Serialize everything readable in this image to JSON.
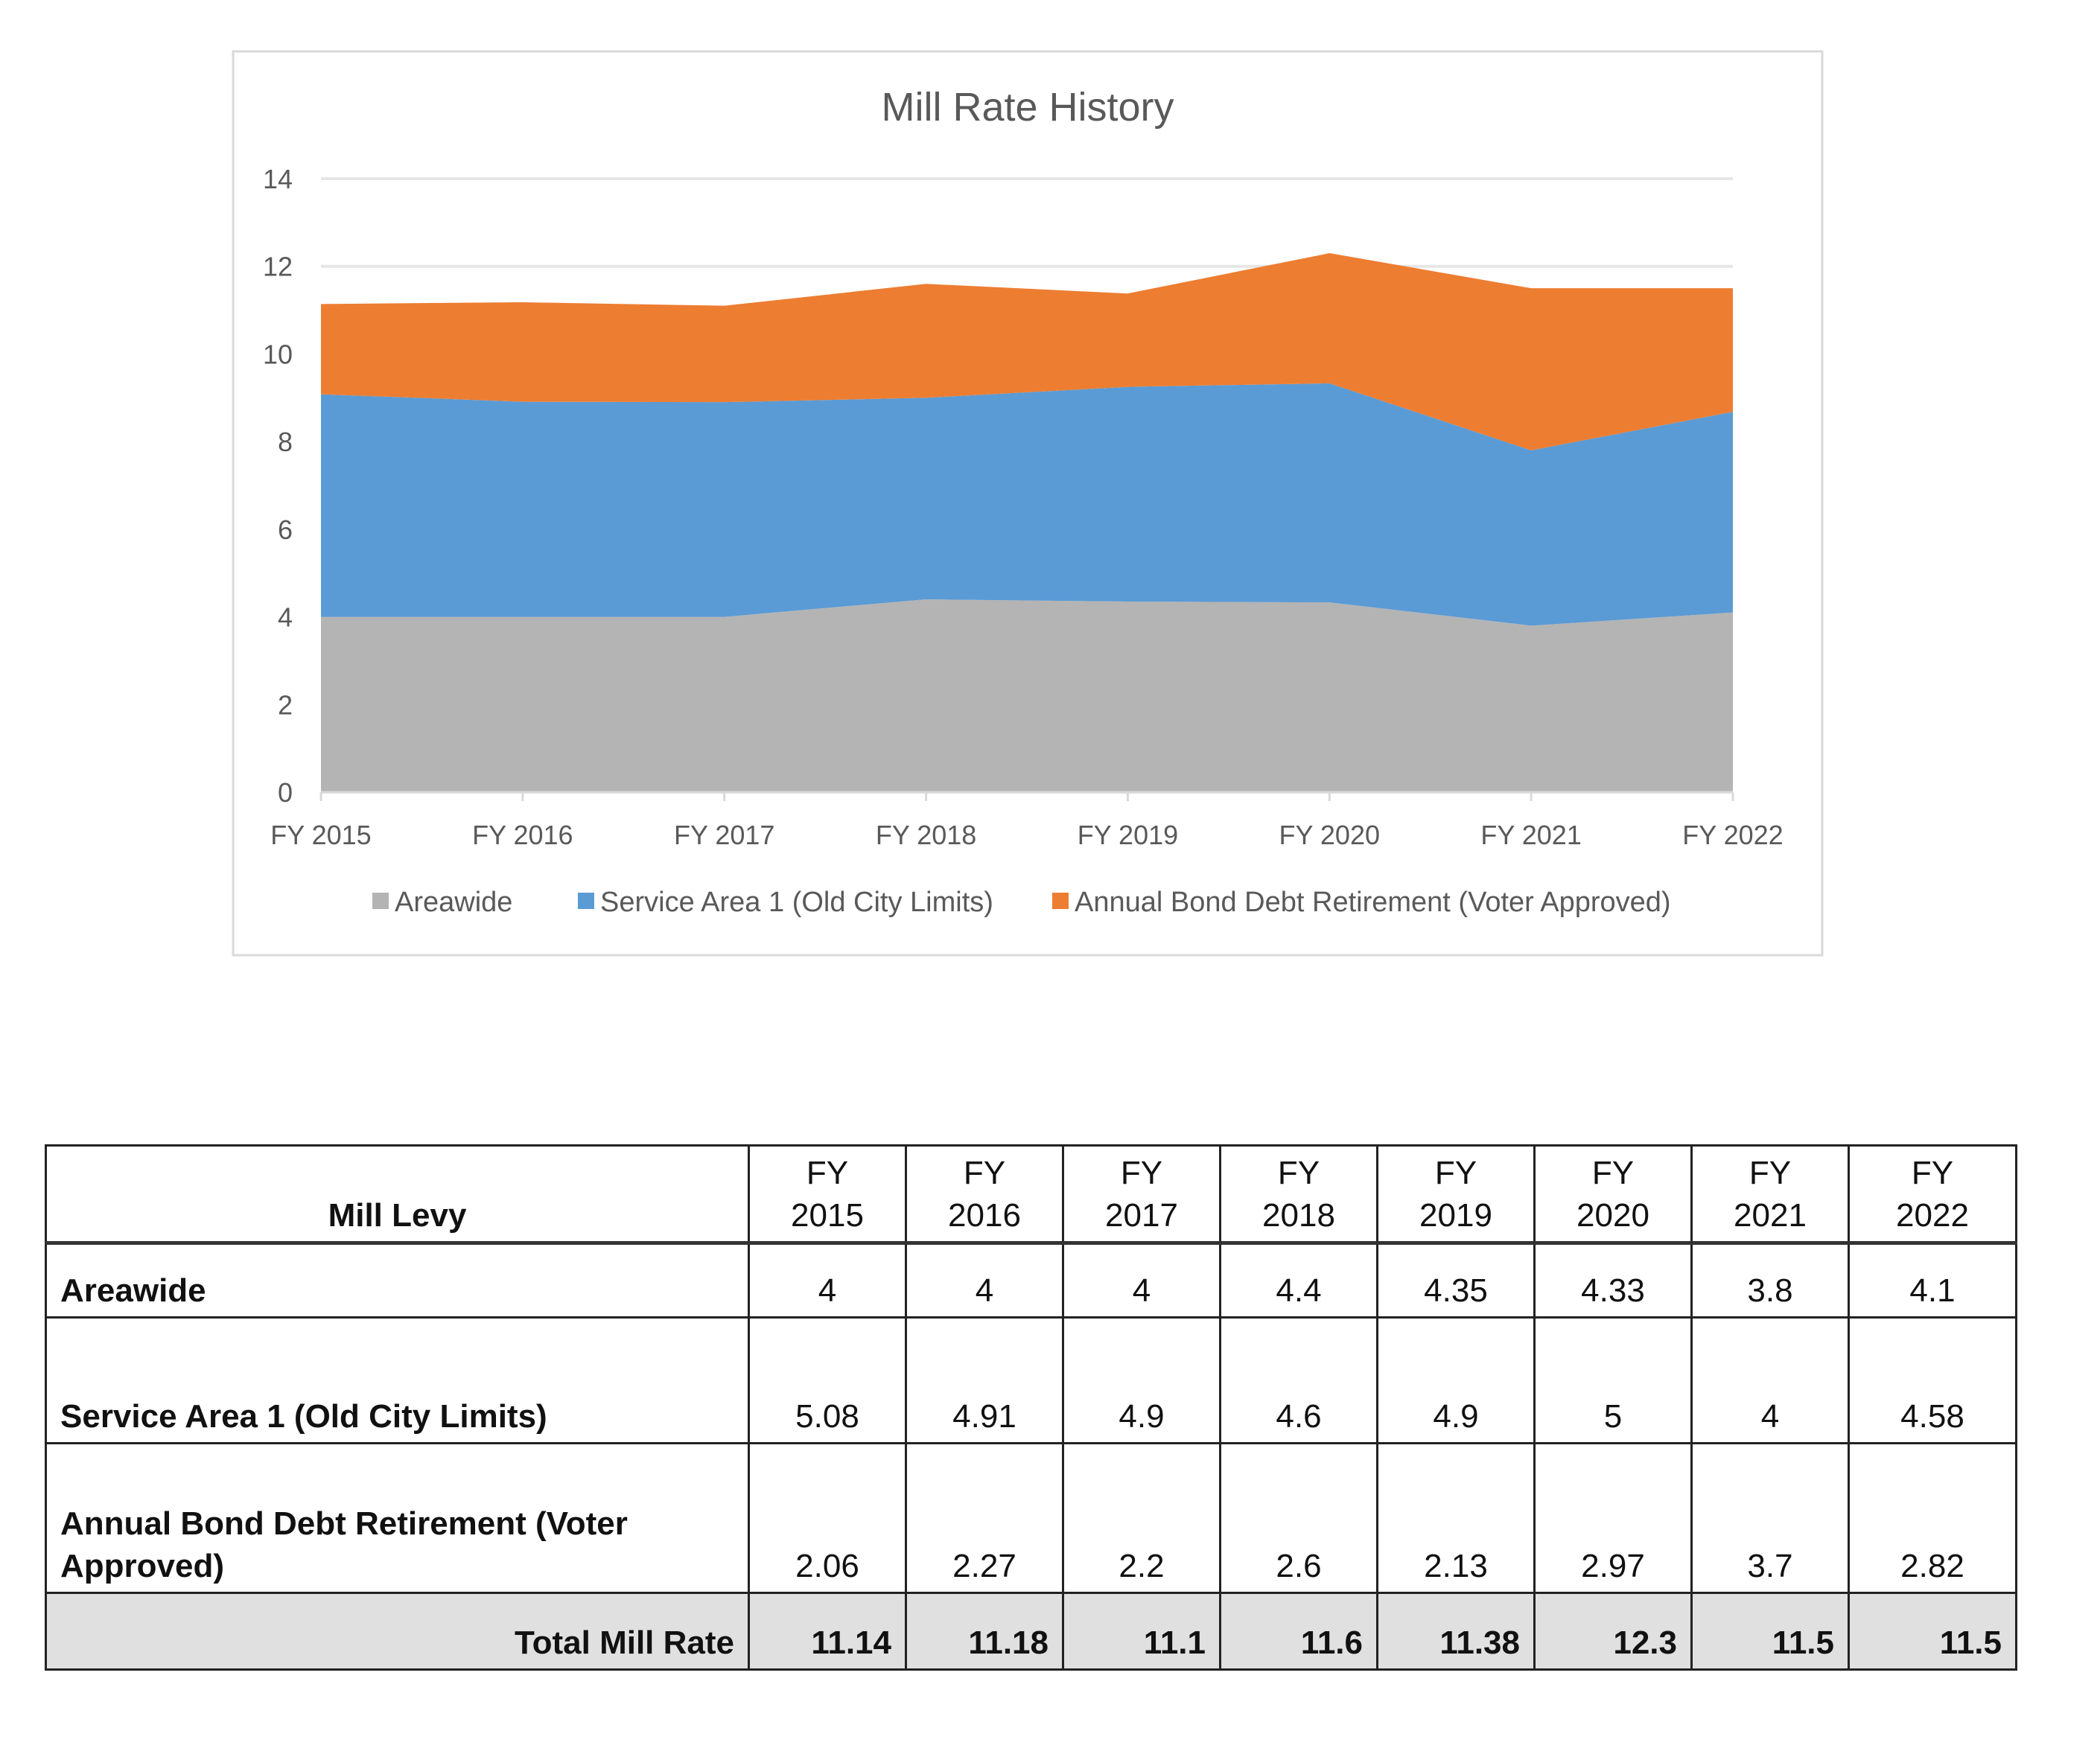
{
  "chart_data": {
    "type": "area",
    "stacked": true,
    "title": "Mill Rate History",
    "categories": [
      "FY 2015",
      "FY 2016",
      "FY 2017",
      "FY 2018",
      "FY 2019",
      "FY 2020",
      "FY 2021",
      "FY 2022"
    ],
    "series": [
      {
        "name": "Areawide",
        "color": "#b4b4b4",
        "values": [
          4,
          4,
          4,
          4.4,
          4.35,
          4.33,
          3.8,
          4.1
        ]
      },
      {
        "name": "Service Area 1 (Old City Limits)",
        "color": "#5b9bd5",
        "values": [
          5.08,
          4.91,
          4.9,
          4.6,
          4.9,
          5,
          4,
          4.58
        ]
      },
      {
        "name": "Annual Bond Debt Retirement (Voter Approved)",
        "color": "#ed7d31",
        "values": [
          2.06,
          2.27,
          2.2,
          2.6,
          2.13,
          2.97,
          3.7,
          2.82
        ]
      }
    ],
    "ylim": [
      0,
      14
    ],
    "yticks": [
      "0",
      "2",
      "4",
      "6",
      "8",
      "10",
      "12",
      "14"
    ],
    "grid": true,
    "legend": "bottom"
  },
  "table": {
    "header_label": "Mill Levy",
    "columns": [
      [
        "FY",
        "2015"
      ],
      [
        "FY",
        "2016"
      ],
      [
        "FY",
        "2017"
      ],
      [
        "FY",
        "2018"
      ],
      [
        "FY",
        "2019"
      ],
      [
        "FY",
        "2020"
      ],
      [
        "FY",
        "2021"
      ],
      [
        "FY",
        "2022"
      ]
    ],
    "rows": [
      {
        "label": "Areawide",
        "values": [
          "4",
          "4",
          "4",
          "4.4",
          "4.35",
          "4.33",
          "3.8",
          "4.1"
        ]
      },
      {
        "label": "Service Area 1 (Old City Limits)",
        "values": [
          "5.08",
          "4.91",
          "4.9",
          "4.6",
          "4.9",
          "5",
          "4",
          "4.58"
        ]
      },
      {
        "label": "Annual Bond Debt Retirement (Voter Approved)",
        "values": [
          "2.06",
          "2.27",
          "2.2",
          "2.6",
          "2.13",
          "2.97",
          "3.7",
          "2.82"
        ]
      }
    ],
    "total": {
      "label": "Total Mill Rate",
      "values": [
        "11.14",
        "11.18",
        "11.1",
        "11.6",
        "11.38",
        "12.3",
        "11.5",
        "11.5"
      ]
    }
  }
}
